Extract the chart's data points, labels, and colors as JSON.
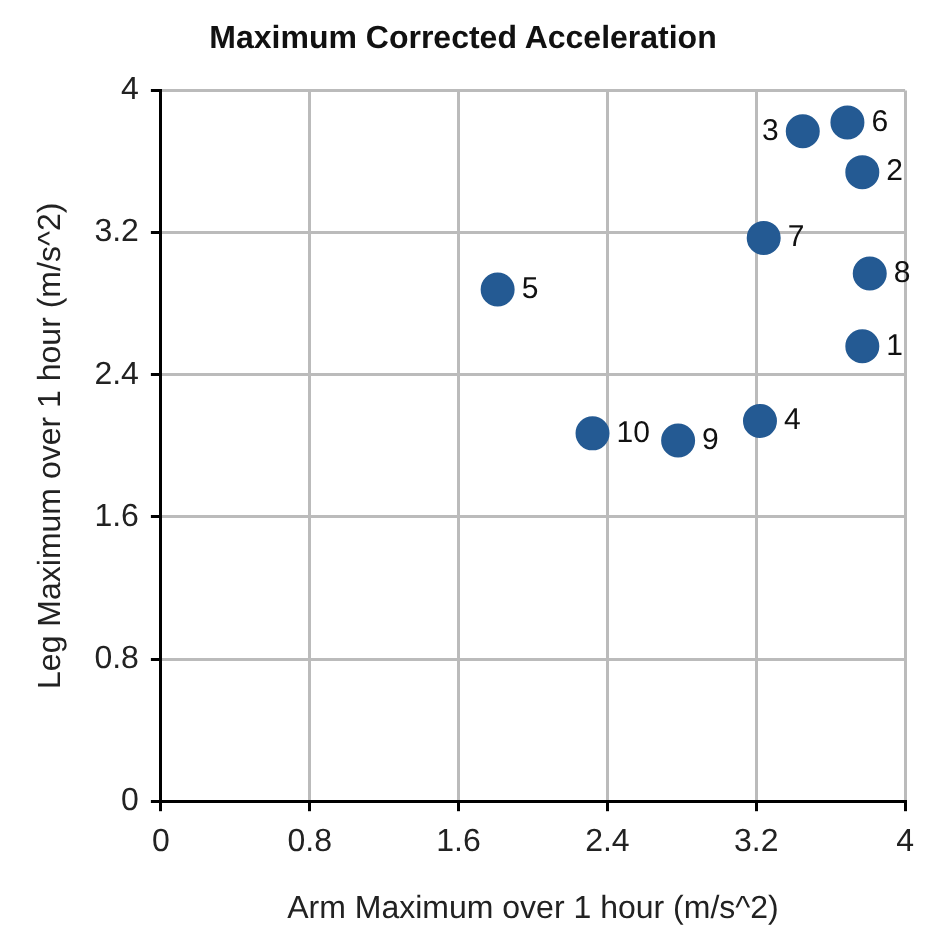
{
  "chart_data": {
    "type": "scatter",
    "title": "Maximum Corrected Acceleration",
    "xlabel": "Arm Maximum over 1 hour (m/s^2)",
    "ylabel": "Leg Maximum over 1 hour (m/s^2)",
    "x": [
      3.77,
      3.77,
      3.45,
      3.22,
      1.81,
      3.69,
      3.24,
      3.81,
      2.78,
      2.32
    ],
    "series": [
      {
        "color": "#245a93",
        "values": [
          2.56,
          3.54,
          3.77,
          2.14,
          2.88,
          3.82,
          3.17,
          2.97,
          2.03,
          2.07
        ]
      }
    ],
    "xlim": [
      0,
      4
    ],
    "ylim": [
      0,
      4
    ],
    "xticks": [
      0,
      0.8,
      1.6,
      2.4,
      3.2,
      4
    ],
    "yticks": [
      0,
      0.8,
      1.6,
      2.4,
      3.2,
      4
    ],
    "grid": true,
    "legend": false,
    "marker": "circle",
    "annotations": [
      {
        "text": "1",
        "x": 3.77,
        "y": 2.56
      },
      {
        "text": "2",
        "x": 3.77,
        "y": 3.54
      },
      {
        "text": "3",
        "x": 3.45,
        "y": 3.77
      },
      {
        "text": "4",
        "x": 3.22,
        "y": 2.14
      },
      {
        "text": "5",
        "x": 1.81,
        "y": 2.88
      },
      {
        "text": "6",
        "x": 3.69,
        "y": 3.82
      },
      {
        "text": "7",
        "x": 3.24,
        "y": 3.17
      },
      {
        "text": "8",
        "x": 3.81,
        "y": 2.97
      },
      {
        "text": "9",
        "x": 2.78,
        "y": 2.03
      },
      {
        "text": "10",
        "x": 2.32,
        "y": 2.07
      }
    ]
  }
}
